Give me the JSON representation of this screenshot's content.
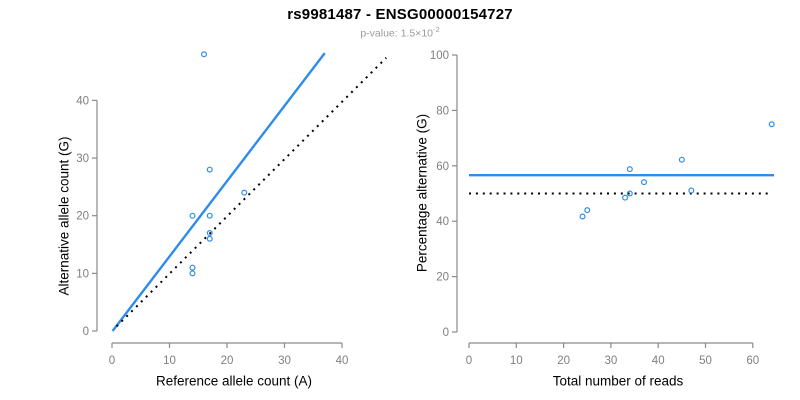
{
  "header": {
    "title": "rs9981487 - ENSG00000154727",
    "pvalue_text": "p-value: 1.5×10",
    "pvalue_exponent": "-2"
  },
  "colors": {
    "point_blue": "#2E8DEA",
    "line_blue": "#2E8DEA",
    "dotted_line": "#000000",
    "axis_gray": "#8a8a8a",
    "tick_label_gray": "#7f7f7f",
    "axis_title_black": "#000000",
    "subtitle_gray": "#9a9a9a"
  },
  "chart_data": [
    {
      "id": "allele-counts",
      "type": "scatter",
      "title": "",
      "xlabel": "Reference allele count (A)",
      "ylabel": "Alternative allele count (G)",
      "xticks": [
        0,
        10,
        20,
        30,
        40
      ],
      "yticks": [
        0,
        10,
        20,
        30,
        40
      ],
      "xlim": [
        0,
        48
      ],
      "ylim": [
        0,
        49
      ],
      "grid": false,
      "legend": "none",
      "points": [
        [
          16,
          48
        ],
        [
          17,
          28
        ],
        [
          23,
          24
        ],
        [
          14,
          20
        ],
        [
          17,
          20
        ],
        [
          17,
          17
        ],
        [
          17,
          16
        ],
        [
          14,
          11
        ],
        [
          14,
          10
        ]
      ],
      "lines": [
        {
          "name": "fitted-allelic-ratio-line",
          "style": "solid",
          "color_key": "line_blue",
          "x1": 0.1,
          "y1": 0,
          "x2": 37,
          "y2": 48.2
        },
        {
          "name": "identity-line",
          "style": "dotted",
          "color_key": "dotted_line",
          "x1": 0.8,
          "y1": 0.8,
          "x2": 47.7,
          "y2": 47.4
        }
      ]
    },
    {
      "id": "percentage-vs-coverage",
      "type": "scatter",
      "title": "",
      "xlabel": "Total number of reads",
      "ylabel": "Percentage alternative (G)",
      "xticks": [
        0,
        10,
        20,
        30,
        40,
        50,
        60
      ],
      "yticks": [
        0,
        20,
        40,
        60,
        80,
        100
      ],
      "xlim": [
        0,
        64.5
      ],
      "ylim": [
        0,
        100
      ],
      "grid": false,
      "legend": "none",
      "points": [
        [
          64,
          75
        ],
        [
          45,
          62.2
        ],
        [
          34,
          58.8
        ],
        [
          37,
          54.1
        ],
        [
          47,
          51.1
        ],
        [
          34,
          50
        ],
        [
          33,
          48.5
        ],
        [
          25,
          44
        ],
        [
          24,
          41.7
        ]
      ],
      "lines": [
        {
          "name": "mean-percentage-line",
          "style": "solid",
          "color_key": "line_blue",
          "x1": 0,
          "y1": 56.6,
          "x2": 64.5,
          "y2": 56.6
        },
        {
          "name": "fifty-percent-line",
          "style": "dotted",
          "color_key": "dotted_line",
          "x1": 0,
          "y1": 50,
          "x2": 63.4,
          "y2": 50
        }
      ]
    }
  ]
}
